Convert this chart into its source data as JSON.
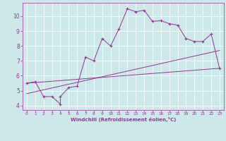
{
  "xlabel": "Windchill (Refroidissement éolien,°C)",
  "bg_color": "#cce8e8",
  "line_color": "#993399",
  "grid_color": "#ffffff",
  "xlim": [
    -0.5,
    23.5
  ],
  "ylim": [
    3.7,
    10.9
  ],
  "xticks": [
    0,
    1,
    2,
    3,
    4,
    5,
    6,
    7,
    8,
    9,
    10,
    11,
    12,
    13,
    14,
    15,
    16,
    17,
    18,
    19,
    20,
    21,
    22,
    23
  ],
  "yticks": [
    4,
    5,
    6,
    7,
    8,
    9,
    10
  ],
  "main_x": [
    0,
    1,
    2,
    3,
    4,
    4,
    5,
    6,
    7,
    8,
    9,
    10,
    11,
    12,
    13,
    14,
    15,
    16,
    17,
    18,
    19,
    20,
    21,
    22,
    23
  ],
  "main_y": [
    5.5,
    5.6,
    4.6,
    4.6,
    4.1,
    4.6,
    5.2,
    5.3,
    7.25,
    7.0,
    8.5,
    8.0,
    9.15,
    10.5,
    10.3,
    10.4,
    9.65,
    9.7,
    9.5,
    9.4,
    8.5,
    8.3,
    8.3,
    8.8,
    6.5
  ],
  "line2_x": [
    0,
    23
  ],
  "line2_y": [
    5.5,
    6.5
  ],
  "line3_x": [
    0,
    23
  ],
  "line3_y": [
    4.8,
    7.7
  ],
  "marker": "+"
}
